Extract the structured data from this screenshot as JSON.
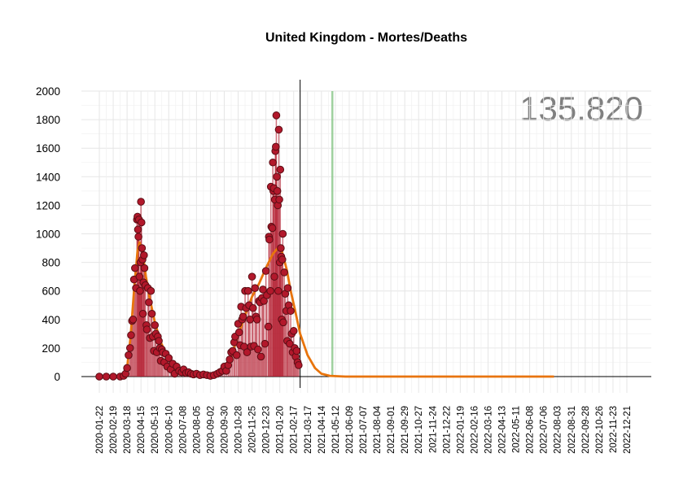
{
  "chart_data": {
    "type": "scatter",
    "title": "United Kingdom - Mortes/Deaths",
    "total_label": "135.820",
    "xlabel": "",
    "ylabel": "",
    "ylim": [
      0,
      2000
    ],
    "yticks": [
      0,
      200,
      400,
      600,
      800,
      1000,
      1200,
      1400,
      1600,
      1800,
      2000
    ],
    "xticks": [
      "2020-01-22",
      "2020-02-19",
      "2020-03-18",
      "2020-04-15",
      "2020-05-13",
      "2020-06-10",
      "2020-07-08",
      "2020-08-05",
      "2020-09-02",
      "2020-09-30",
      "2020-10-28",
      "2020-11-25",
      "2020-12-23",
      "2021-01-20",
      "2021-02-17",
      "2021-03-17",
      "2021-04-14",
      "2021-05-12",
      "2021-06-09",
      "2021-07-07",
      "2021-08-04",
      "2021-09-01",
      "2021-09-29",
      "2021-10-27",
      "2021-11-24",
      "2021-12-22",
      "2022-01-19",
      "2022-02-16",
      "2022-03-16",
      "2022-04-13",
      "2022-05-11",
      "2022-06-08",
      "2022-07-06",
      "2022-08-03",
      "2022-08-31",
      "2022-09-28",
      "2022-10-26",
      "2022-11-23",
      "2022-12-21"
    ],
    "grid": true,
    "vertical_markers": [
      {
        "date": "2021-03-02",
        "color": "#000000"
      },
      {
        "date": "2021-05-06",
        "color": "#8fc98f"
      }
    ],
    "series": [
      {
        "kind": "daily-points",
        "color": "#b2182b",
        "points": [
          [
            "2020-01-22",
            0
          ],
          [
            "2020-02-05",
            0
          ],
          [
            "2020-02-19",
            0
          ],
          [
            "2020-03-04",
            0
          ],
          [
            "2020-03-11",
            5
          ],
          [
            "2020-03-15",
            20
          ],
          [
            "2020-03-18",
            60
          ],
          [
            "2020-03-21",
            150
          ],
          [
            "2020-03-24",
            200
          ],
          [
            "2020-03-26",
            290
          ],
          [
            "2020-03-28",
            390
          ],
          [
            "2020-03-30",
            400
          ],
          [
            "2020-04-01",
            680
          ],
          [
            "2020-04-03",
            760
          ],
          [
            "2020-04-05",
            620
          ],
          [
            "2020-04-07",
            1100
          ],
          [
            "2020-04-08",
            1120
          ],
          [
            "2020-04-09",
            1030
          ],
          [
            "2020-04-10",
            980
          ],
          [
            "2020-04-11",
            1100
          ],
          [
            "2020-04-12",
            700
          ],
          [
            "2020-04-13",
            600
          ],
          [
            "2020-04-14",
            800
          ],
          [
            "2020-04-15",
            1225
          ],
          [
            "2020-04-16",
            1080
          ],
          [
            "2020-04-17",
            900
          ],
          [
            "2020-04-18",
            820
          ],
          [
            "2020-04-19",
            440
          ],
          [
            "2020-04-20",
            660
          ],
          [
            "2020-04-21",
            850
          ],
          [
            "2020-04-22",
            760
          ],
          [
            "2020-04-24",
            640
          ],
          [
            "2020-04-26",
            360
          ],
          [
            "2020-04-27",
            330
          ],
          [
            "2020-04-29",
            620
          ],
          [
            "2020-05-01",
            520
          ],
          [
            "2020-05-03",
            270
          ],
          [
            "2020-05-05",
            600
          ],
          [
            "2020-05-07",
            440
          ],
          [
            "2020-05-09",
            280
          ],
          [
            "2020-05-11",
            180
          ],
          [
            "2020-05-13",
            360
          ],
          [
            "2020-05-15",
            300
          ],
          [
            "2020-05-17",
            170
          ],
          [
            "2020-05-19",
            280
          ],
          [
            "2020-05-21",
            250
          ],
          [
            "2020-05-23",
            200
          ],
          [
            "2020-05-25",
            110
          ],
          [
            "2020-05-27",
            190
          ],
          [
            "2020-05-29",
            170
          ],
          [
            "2020-06-01",
            100
          ],
          [
            "2020-06-04",
            160
          ],
          [
            "2020-06-07",
            70
          ],
          [
            "2020-06-10",
            130
          ],
          [
            "2020-06-14",
            50
          ],
          [
            "2020-06-18",
            90
          ],
          [
            "2020-06-22",
            20
          ],
          [
            "2020-06-26",
            70
          ],
          [
            "2020-07-01",
            40
          ],
          [
            "2020-07-06",
            30
          ],
          [
            "2020-07-10",
            50
          ],
          [
            "2020-07-15",
            25
          ],
          [
            "2020-07-20",
            30
          ],
          [
            "2020-07-25",
            20
          ],
          [
            "2020-07-30",
            15
          ],
          [
            "2020-08-05",
            20
          ],
          [
            "2020-08-12",
            10
          ],
          [
            "2020-08-19",
            15
          ],
          [
            "2020-08-26",
            10
          ],
          [
            "2020-09-02",
            5
          ],
          [
            "2020-09-09",
            10
          ],
          [
            "2020-09-16",
            20
          ],
          [
            "2020-09-21",
            30
          ],
          [
            "2020-09-26",
            40
          ],
          [
            "2020-09-30",
            70
          ],
          [
            "2020-10-04",
            40
          ],
          [
            "2020-10-08",
            80
          ],
          [
            "2020-10-11",
            120
          ],
          [
            "2020-10-14",
            170
          ],
          [
            "2020-10-17",
            180
          ],
          [
            "2020-10-20",
            240
          ],
          [
            "2020-10-22",
            280
          ],
          [
            "2020-10-25",
            150
          ],
          [
            "2020-10-28",
            370
          ],
          [
            "2020-10-30",
            310
          ],
          [
            "2020-11-01",
            220
          ],
          [
            "2020-11-03",
            490
          ],
          [
            "2020-11-05",
            400
          ],
          [
            "2020-11-07",
            420
          ],
          [
            "2020-11-09",
            210
          ],
          [
            "2020-11-11",
            600
          ],
          [
            "2020-11-13",
            480
          ],
          [
            "2020-11-15",
            170
          ],
          [
            "2020-11-17",
            600
          ],
          [
            "2020-11-19",
            500
          ],
          [
            "2020-11-21",
            400
          ],
          [
            "2020-11-23",
            210
          ],
          [
            "2020-11-25",
            700
          ],
          [
            "2020-11-27",
            480
          ],
          [
            "2020-11-29",
            215
          ],
          [
            "2020-12-01",
            620
          ],
          [
            "2020-12-03",
            420
          ],
          [
            "2020-12-05",
            400
          ],
          [
            "2020-12-07",
            190
          ],
          [
            "2020-12-09",
            530
          ],
          [
            "2020-12-11",
            520
          ],
          [
            "2020-12-13",
            140
          ],
          [
            "2020-12-15",
            550
          ],
          [
            "2020-12-17",
            610
          ],
          [
            "2020-12-19",
            530
          ],
          [
            "2020-12-21",
            230
          ],
          [
            "2020-12-23",
            740
          ],
          [
            "2020-12-25",
            570
          ],
          [
            "2020-12-28",
            350
          ],
          [
            "2020-12-29",
            980
          ],
          [
            "2020-12-30",
            960
          ],
          [
            "2021-01-01",
            600
          ],
          [
            "2021-01-02",
            1330
          ],
          [
            "2021-01-03",
            1050
          ],
          [
            "2021-01-05",
            1040
          ],
          [
            "2021-01-06",
            1500
          ],
          [
            "2021-01-07",
            1300
          ],
          [
            "2021-01-08",
            1320
          ],
          [
            "2021-01-09",
            700
          ],
          [
            "2021-01-10",
            1240
          ],
          [
            "2021-01-11",
            1580
          ],
          [
            "2021-01-12",
            1610
          ],
          [
            "2021-01-13",
            1830
          ],
          [
            "2021-01-14",
            1400
          ],
          [
            "2021-01-15",
            1300
          ],
          [
            "2021-01-16",
            1200
          ],
          [
            "2021-01-17",
            600
          ],
          [
            "2021-01-18",
            1730
          ],
          [
            "2021-01-19",
            1240
          ],
          [
            "2021-01-20",
            800
          ],
          [
            "2021-01-21",
            1450
          ],
          [
            "2021-01-22",
            900
          ],
          [
            "2021-01-23",
            840
          ],
          [
            "2021-01-24",
            400
          ],
          [
            "2021-01-25",
            820
          ],
          [
            "2021-01-26",
            1000
          ],
          [
            "2021-01-27",
            380
          ],
          [
            "2021-01-29",
            730
          ],
          [
            "2021-01-31",
            580
          ],
          [
            "2021-02-02",
            460
          ],
          [
            "2021-02-04",
            250
          ],
          [
            "2021-02-05",
            620
          ],
          [
            "2021-02-07",
            500
          ],
          [
            "2021-02-09",
            230
          ],
          [
            "2021-02-11",
            460
          ],
          [
            "2021-02-13",
            300
          ],
          [
            "2021-02-15",
            170
          ],
          [
            "2021-02-17",
            320
          ],
          [
            "2021-02-19",
            200
          ],
          [
            "2021-02-21",
            140
          ],
          [
            "2021-02-23",
            180
          ],
          [
            "2021-02-25",
            100
          ],
          [
            "2021-02-27",
            80
          ]
        ]
      },
      {
        "kind": "smoothed-fit",
        "color": "#e8740c",
        "points": [
          [
            "2020-03-09",
            0
          ],
          [
            "2020-03-18",
            60
          ],
          [
            "2020-03-25",
            280
          ],
          [
            "2020-04-01",
            600
          ],
          [
            "2020-04-08",
            880
          ],
          [
            "2020-04-12",
            940
          ],
          [
            "2020-04-18",
            880
          ],
          [
            "2020-04-25",
            700
          ],
          [
            "2020-05-02",
            560
          ],
          [
            "2020-05-13",
            380
          ],
          [
            "2020-05-25",
            240
          ],
          [
            "2020-06-10",
            120
          ],
          [
            "2020-06-25",
            60
          ],
          [
            "2020-07-08",
            25
          ],
          [
            "2020-07-25",
            10
          ],
          [
            "2020-08-10",
            5
          ],
          [
            "2020-08-31",
            5
          ],
          [
            "2020-09-14",
            15
          ],
          [
            "2020-09-30",
            45
          ],
          [
            "2020-10-14",
            140
          ],
          [
            "2020-10-28",
            290
          ],
          [
            "2020-11-11",
            430
          ],
          [
            "2020-11-25",
            560
          ],
          [
            "2020-12-09",
            650
          ],
          [
            "2020-12-23",
            760
          ],
          [
            "2021-01-06",
            860
          ],
          [
            "2021-01-16",
            900
          ],
          [
            "2021-01-24",
            880
          ],
          [
            "2021-02-03",
            750
          ],
          [
            "2021-02-11",
            600
          ],
          [
            "2021-02-20",
            460
          ],
          [
            "2021-03-02",
            300
          ],
          [
            "2021-03-17",
            150
          ],
          [
            "2021-04-01",
            60
          ],
          [
            "2021-04-14",
            20
          ],
          [
            "2021-05-01",
            5
          ],
          [
            "2021-06-01",
            0
          ],
          [
            "2022-07-27",
            0
          ]
        ]
      }
    ]
  }
}
